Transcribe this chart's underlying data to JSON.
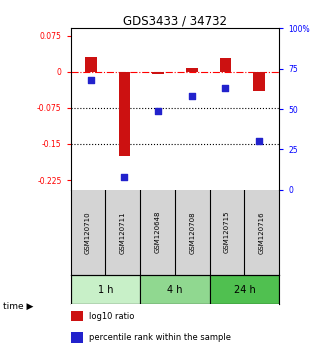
{
  "title": "GDS3433 / 34732",
  "samples": [
    "GSM120710",
    "GSM120711",
    "GSM120648",
    "GSM120708",
    "GSM120715",
    "GSM120716"
  ],
  "log10_ratio": [
    0.03,
    -0.175,
    -0.005,
    0.008,
    0.028,
    -0.04
  ],
  "percentile_rank": [
    68,
    8,
    49,
    58,
    63,
    30
  ],
  "time_groups": [
    {
      "label": "1 h",
      "start": 0,
      "end": 2,
      "color": "#c8f0c8"
    },
    {
      "label": "4 h",
      "start": 2,
      "end": 4,
      "color": "#90d890"
    },
    {
      "label": "24 h",
      "start": 4,
      "end": 6,
      "color": "#50c050"
    }
  ],
  "bar_color": "#cc1111",
  "dot_color": "#2222cc",
  "ylim_left": [
    -0.245,
    0.09
  ],
  "ylim_right": [
    0,
    100
  ],
  "yticks_left": [
    0.075,
    0,
    -0.075,
    -0.15,
    -0.225
  ],
  "yticks_right": [
    100,
    75,
    50,
    25,
    0
  ],
  "hlines": [
    0,
    -0.075,
    -0.15
  ],
  "hline_styles": [
    "dashdot",
    "dotted",
    "dotted"
  ],
  "hline_colors": [
    "red",
    "black",
    "black"
  ],
  "bar_width": 0.35,
  "dot_size": 25,
  "legend_items": [
    "log10 ratio",
    "percentile rank within the sample"
  ]
}
